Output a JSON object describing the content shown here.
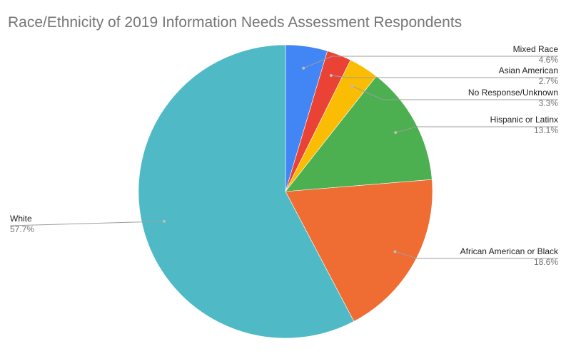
{
  "chart_data": {
    "type": "pie",
    "title": "Race/Ethnicity of 2019 Information Needs Assessment Respondents",
    "slices": [
      {
        "label": "Mixed Race",
        "value": 4.6,
        "value_label": "4.6%",
        "color": "#4285f4"
      },
      {
        "label": "Asian American",
        "value": 2.7,
        "value_label": "2.7%",
        "color": "#ea4335"
      },
      {
        "label": "No Response/Unknown",
        "value": 3.3,
        "value_label": "3.3%",
        "color": "#fbbc04"
      },
      {
        "label": "Hispanic or Latinx",
        "value": 13.1,
        "value_label": "13.1%",
        "color": "#4caf50"
      },
      {
        "label": "African American or Black",
        "value": 18.6,
        "value_label": "18.6%",
        "color": "#ef6c33"
      },
      {
        "label": "White",
        "value": 57.7,
        "value_label": "57.7%",
        "color": "#4fbac6"
      }
    ],
    "start_angle": "12 o'clock",
    "direction": "clockwise"
  }
}
